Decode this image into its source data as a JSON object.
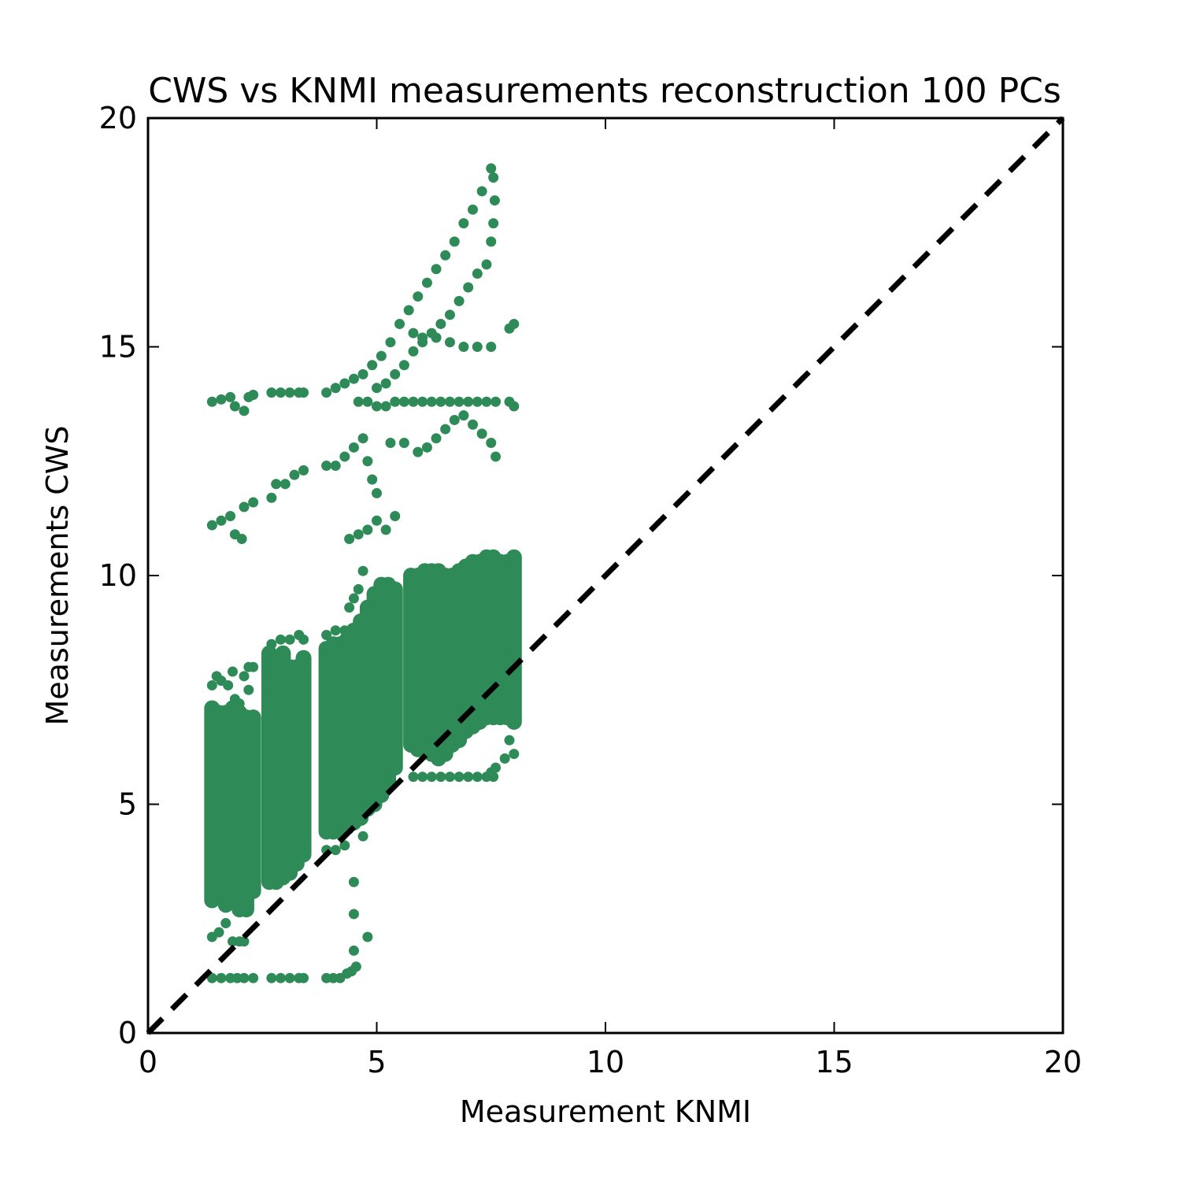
{
  "chart_data": {
    "type": "scatter",
    "title": "CWS vs KNMI measurements reconstruction 100 PCs",
    "xlabel": "Measurement KNMI",
    "ylabel": "Measurements CWS",
    "xlim": [
      0,
      20
    ],
    "ylim": [
      0,
      20
    ],
    "xticks": [
      "0",
      "5",
      "10",
      "15",
      "20"
    ],
    "yticks": [
      "0",
      "5",
      "10",
      "15",
      "20"
    ],
    "grid": false,
    "legend": "none",
    "point_color": "#2e8b57",
    "reference_line": {
      "style": "dashed",
      "color": "#000000",
      "from": [
        0,
        0
      ],
      "to": [
        20,
        20
      ]
    },
    "series": [
      {
        "color": "#2e8b57",
        "columns": [
          {
            "x": 1.4,
            "ymin": 2.9,
            "ymax": 7.1
          },
          {
            "x": 1.55,
            "ymin": 3.0,
            "ymax": 7.0
          },
          {
            "x": 1.7,
            "ymin": 2.8,
            "ymax": 7.0
          },
          {
            "x": 1.85,
            "ymin": 2.9,
            "ymax": 7.1
          },
          {
            "x": 2.0,
            "ymin": 2.7,
            "ymax": 7.0
          },
          {
            "x": 2.15,
            "ymin": 2.7,
            "ymax": 6.9
          },
          {
            "x": 2.3,
            "ymin": 3.1,
            "ymax": 6.9
          },
          {
            "x": 2.65,
            "ymin": 3.3,
            "ymax": 8.3
          },
          {
            "x": 2.8,
            "ymin": 3.3,
            "ymax": 8.2
          },
          {
            "x": 2.95,
            "ymin": 3.4,
            "ymax": 8.3
          },
          {
            "x": 3.1,
            "ymin": 3.5,
            "ymax": 8.0
          },
          {
            "x": 3.25,
            "ymin": 3.7,
            "ymax": 8.0
          },
          {
            "x": 3.4,
            "ymin": 3.9,
            "ymax": 8.2
          },
          {
            "x": 3.9,
            "ymin": 4.4,
            "ymax": 8.4
          },
          {
            "x": 4.05,
            "ymin": 4.4,
            "ymax": 8.5
          },
          {
            "x": 4.2,
            "ymin": 4.4,
            "ymax": 8.5
          },
          {
            "x": 4.35,
            "ymin": 4.5,
            "ymax": 8.6
          },
          {
            "x": 4.5,
            "ymin": 4.6,
            "ymax": 8.8
          },
          {
            "x": 4.65,
            "ymin": 4.7,
            "ymax": 9.0
          },
          {
            "x": 4.8,
            "ymin": 4.9,
            "ymax": 9.3
          },
          {
            "x": 4.95,
            "ymin": 5.0,
            "ymax": 9.6
          },
          {
            "x": 5.1,
            "ymin": 5.2,
            "ymax": 9.8
          },
          {
            "x": 5.25,
            "ymin": 5.5,
            "ymax": 9.8
          },
          {
            "x": 5.4,
            "ymin": 5.8,
            "ymax": 9.7
          },
          {
            "x": 5.75,
            "ymin": 6.3,
            "ymax": 10.0
          },
          {
            "x": 5.9,
            "ymin": 6.2,
            "ymax": 10.0
          },
          {
            "x": 6.05,
            "ymin": 6.2,
            "ymax": 10.1
          },
          {
            "x": 6.2,
            "ymin": 6.1,
            "ymax": 10.1
          },
          {
            "x": 6.35,
            "ymin": 6.0,
            "ymax": 10.1
          },
          {
            "x": 6.5,
            "ymin": 6.1,
            "ymax": 10.0
          },
          {
            "x": 6.65,
            "ymin": 6.3,
            "ymax": 10.0
          },
          {
            "x": 6.8,
            "ymin": 6.4,
            "ymax": 10.1
          },
          {
            "x": 6.95,
            "ymin": 6.6,
            "ymax": 10.2
          },
          {
            "x": 7.1,
            "ymin": 6.7,
            "ymax": 10.3
          },
          {
            "x": 7.25,
            "ymin": 6.8,
            "ymax": 10.3
          },
          {
            "x": 7.4,
            "ymin": 6.9,
            "ymax": 10.4
          },
          {
            "x": 7.55,
            "ymin": 6.9,
            "ymax": 10.4
          },
          {
            "x": 7.7,
            "ymin": 6.9,
            "ymax": 10.3
          },
          {
            "x": 7.85,
            "ymin": 6.9,
            "ymax": 10.3
          },
          {
            "x": 8.0,
            "ymin": 6.8,
            "ymax": 10.4
          }
        ],
        "points": [
          [
            1.4,
            13.8
          ],
          [
            1.6,
            13.85
          ],
          [
            1.8,
            13.9
          ],
          [
            1.9,
            13.7
          ],
          [
            2.1,
            13.6
          ],
          [
            2.2,
            13.9
          ],
          [
            2.3,
            13.95
          ],
          [
            2.7,
            14.0
          ],
          [
            2.9,
            14.0
          ],
          [
            3.1,
            14.0
          ],
          [
            3.3,
            14.0
          ],
          [
            3.4,
            14.0
          ],
          [
            3.9,
            14.0
          ],
          [
            4.1,
            14.1
          ],
          [
            4.3,
            14.2
          ],
          [
            4.5,
            14.3
          ],
          [
            4.7,
            14.4
          ],
          [
            4.9,
            14.6
          ],
          [
            5.1,
            14.8
          ],
          [
            5.3,
            15.1
          ],
          [
            5.5,
            15.5
          ],
          [
            5.7,
            15.8
          ],
          [
            5.9,
            16.1
          ],
          [
            6.1,
            16.4
          ],
          [
            6.3,
            16.7
          ],
          [
            6.5,
            17.0
          ],
          [
            6.7,
            17.3
          ],
          [
            6.9,
            17.7
          ],
          [
            7.1,
            18.0
          ],
          [
            7.3,
            18.4
          ],
          [
            7.5,
            18.9
          ],
          [
            7.55,
            18.7
          ],
          [
            7.58,
            18.2
          ],
          [
            7.55,
            17.7
          ],
          [
            7.5,
            17.3
          ],
          [
            7.4,
            16.8
          ],
          [
            7.2,
            16.6
          ],
          [
            7.0,
            16.3
          ],
          [
            6.8,
            16.0
          ],
          [
            6.6,
            15.7
          ],
          [
            6.4,
            15.5
          ],
          [
            6.2,
            15.3
          ],
          [
            6.0,
            15.1
          ],
          [
            5.8,
            14.9
          ],
          [
            5.6,
            14.6
          ],
          [
            5.4,
            14.4
          ],
          [
            5.2,
            14.2
          ],
          [
            5.0,
            14.1
          ],
          [
            4.6,
            13.8
          ],
          [
            4.8,
            13.8
          ],
          [
            5.0,
            13.7
          ],
          [
            5.2,
            13.7
          ],
          [
            5.4,
            13.8
          ],
          [
            5.6,
            13.8
          ],
          [
            5.8,
            13.8
          ],
          [
            6.0,
            13.8
          ],
          [
            6.2,
            13.8
          ],
          [
            6.4,
            13.8
          ],
          [
            6.6,
            13.8
          ],
          [
            6.8,
            13.8
          ],
          [
            7.0,
            13.8
          ],
          [
            7.2,
            13.8
          ],
          [
            7.4,
            13.8
          ],
          [
            7.6,
            13.8
          ],
          [
            7.9,
            13.8
          ],
          [
            8.0,
            13.7
          ],
          [
            5.3,
            12.9
          ],
          [
            5.6,
            12.9
          ],
          [
            5.9,
            12.7
          ],
          [
            6.1,
            12.8
          ],
          [
            6.3,
            13.0
          ],
          [
            6.5,
            13.2
          ],
          [
            6.7,
            13.4
          ],
          [
            6.9,
            13.5
          ],
          [
            7.1,
            13.3
          ],
          [
            7.3,
            13.1
          ],
          [
            7.5,
            12.9
          ],
          [
            7.6,
            12.6
          ],
          [
            5.8,
            15.3
          ],
          [
            6.0,
            15.2
          ],
          [
            6.3,
            15.2
          ],
          [
            6.6,
            15.1
          ],
          [
            6.9,
            15.0
          ],
          [
            7.2,
            15.0
          ],
          [
            7.5,
            15.0
          ],
          [
            7.9,
            15.4
          ],
          [
            8.0,
            15.5
          ],
          [
            1.4,
            11.1
          ],
          [
            1.6,
            11.2
          ],
          [
            1.8,
            11.3
          ],
          [
            1.9,
            10.9
          ],
          [
            2.05,
            10.8
          ],
          [
            2.1,
            11.5
          ],
          [
            2.3,
            11.6
          ],
          [
            2.7,
            11.7
          ],
          [
            2.8,
            12.0
          ],
          [
            3.0,
            12.0
          ],
          [
            3.2,
            12.2
          ],
          [
            3.4,
            12.3
          ],
          [
            3.9,
            12.4
          ],
          [
            4.1,
            12.4
          ],
          [
            4.3,
            12.6
          ],
          [
            4.5,
            12.8
          ],
          [
            4.7,
            13.0
          ],
          [
            4.8,
            12.5
          ],
          [
            4.9,
            12.1
          ],
          [
            5.0,
            11.8
          ],
          [
            4.4,
            10.8
          ],
          [
            4.6,
            10.9
          ],
          [
            4.8,
            11.0
          ],
          [
            5.0,
            11.2
          ],
          [
            5.2,
            11.0
          ],
          [
            5.4,
            11.3
          ],
          [
            1.4,
            7.6
          ],
          [
            1.5,
            7.8
          ],
          [
            1.6,
            7.7
          ],
          [
            1.75,
            7.6
          ],
          [
            1.85,
            7.9
          ],
          [
            1.9,
            7.3
          ],
          [
            2.1,
            7.8
          ],
          [
            2.2,
            8.0
          ],
          [
            2.3,
            8.0
          ],
          [
            2.2,
            7.5
          ],
          [
            2.0,
            7.2
          ],
          [
            2.7,
            8.5
          ],
          [
            2.9,
            8.6
          ],
          [
            3.1,
            8.6
          ],
          [
            3.3,
            8.7
          ],
          [
            3.4,
            8.6
          ],
          [
            3.9,
            8.7
          ],
          [
            4.1,
            8.8
          ],
          [
            4.3,
            8.8
          ],
          [
            4.4,
            9.3
          ],
          [
            4.5,
            9.5
          ],
          [
            4.6,
            9.7
          ],
          [
            4.7,
            10.1
          ],
          [
            1.4,
            2.1
          ],
          [
            1.55,
            2.2
          ],
          [
            1.7,
            2.4
          ],
          [
            1.85,
            2.0
          ],
          [
            2.0,
            2.0
          ],
          [
            2.1,
            2.0
          ],
          [
            1.4,
            1.2
          ],
          [
            1.6,
            1.2
          ],
          [
            1.8,
            1.2
          ],
          [
            1.95,
            1.2
          ],
          [
            2.1,
            1.2
          ],
          [
            2.3,
            1.2
          ],
          [
            2.7,
            1.2
          ],
          [
            2.9,
            1.2
          ],
          [
            3.1,
            1.2
          ],
          [
            3.3,
            1.2
          ],
          [
            3.4,
            1.2
          ],
          [
            3.9,
            1.2
          ],
          [
            4.05,
            1.2
          ],
          [
            4.2,
            1.2
          ],
          [
            4.35,
            1.3
          ],
          [
            4.45,
            1.35
          ],
          [
            4.55,
            1.45
          ],
          [
            4.5,
            1.8
          ],
          [
            4.5,
            2.6
          ],
          [
            4.5,
            3.3
          ],
          [
            4.8,
            2.1
          ],
          [
            3.9,
            4.0
          ],
          [
            4.1,
            4.0
          ],
          [
            4.3,
            4.1
          ],
          [
            4.7,
            4.3
          ],
          [
            5.8,
            5.6
          ],
          [
            6.0,
            5.6
          ],
          [
            6.2,
            5.6
          ],
          [
            6.4,
            5.6
          ],
          [
            6.6,
            5.6
          ],
          [
            6.8,
            5.6
          ],
          [
            7.0,
            5.6
          ],
          [
            7.2,
            5.6
          ],
          [
            7.4,
            5.6
          ],
          [
            7.55,
            5.6
          ],
          [
            7.6,
            5.8
          ],
          [
            7.5,
            5.7
          ],
          [
            7.8,
            6.0
          ],
          [
            7.9,
            6.4
          ],
          [
            8.0,
            6.1
          ]
        ]
      }
    ]
  }
}
